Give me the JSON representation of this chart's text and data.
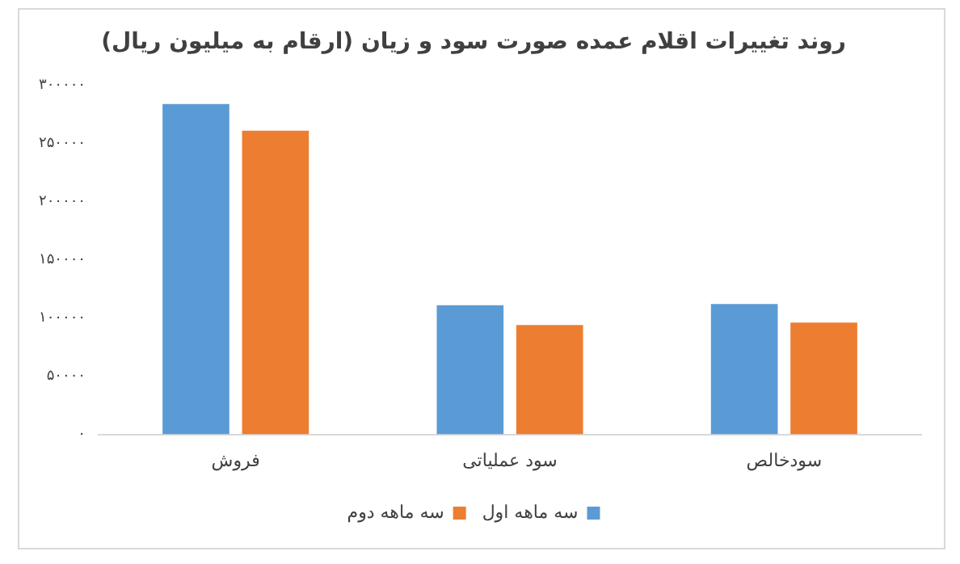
{
  "chart_data": {
    "type": "bar",
    "title": "روند تغییرات اقلام عمده صورت سود و زیان (ارقام به میلیون ریال)",
    "categories": [
      "فروش",
      "سود عملیاتی",
      "سودخالص"
    ],
    "series": [
      {
        "name": "سه ماهه اول",
        "color": "#5b9bd5",
        "values": [
          284000,
          111000,
          112000
        ]
      },
      {
        "name": "سه ماهه دوم",
        "color": "#ed7d31",
        "values": [
          261000,
          94000,
          96000
        ]
      }
    ],
    "ylim": [
      0,
      300000
    ],
    "yticks": [
      {
        "value": 0,
        "label": "۰"
      },
      {
        "value": 50000,
        "label": "۵۰۰۰۰"
      },
      {
        "value": 100000,
        "label": "۱۰۰۰۰۰"
      },
      {
        "value": 150000,
        "label": "۱۵۰۰۰۰"
      },
      {
        "value": 200000,
        "label": "۲۰۰۰۰۰"
      },
      {
        "value": 250000,
        "label": "۲۵۰۰۰۰"
      },
      {
        "value": 300000,
        "label": "۳۰۰۰۰۰"
      }
    ],
    "grid": false,
    "legend": "bottom"
  }
}
